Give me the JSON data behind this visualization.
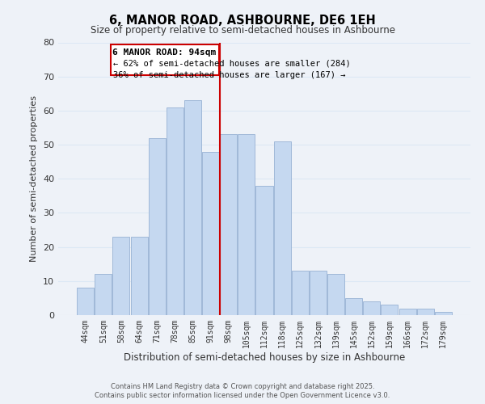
{
  "title": "6, MANOR ROAD, ASHBOURNE, DE6 1EH",
  "subtitle": "Size of property relative to semi-detached houses in Ashbourne",
  "xlabel": "Distribution of semi-detached houses by size in Ashbourne",
  "ylabel": "Number of semi-detached properties",
  "categories": [
    "44sqm",
    "51sqm",
    "58sqm",
    "64sqm",
    "71sqm",
    "78sqm",
    "85sqm",
    "91sqm",
    "98sqm",
    "105sqm",
    "112sqm",
    "118sqm",
    "125sqm",
    "132sqm",
    "139sqm",
    "145sqm",
    "152sqm",
    "159sqm",
    "166sqm",
    "172sqm",
    "179sqm"
  ],
  "values": [
    8,
    12,
    23,
    23,
    52,
    61,
    63,
    48,
    53,
    53,
    38,
    51,
    13,
    13,
    12,
    5,
    4,
    3,
    2,
    2,
    1
  ],
  "bar_color": "#c5d8f0",
  "bar_edge_color": "#a0b8d8",
  "highlight_label": "6 MANOR ROAD: 94sqm",
  "annotation_line1": "← 62% of semi-detached houses are smaller (284)",
  "annotation_line2": "36% of semi-detached houses are larger (167) →",
  "annotation_box_color": "#ffffff",
  "annotation_box_edge": "#cc0000",
  "vline_color": "#cc0000",
  "ylim": [
    0,
    80
  ],
  "yticks": [
    0,
    10,
    20,
    30,
    40,
    50,
    60,
    70,
    80
  ],
  "grid_color": "#dce8f5",
  "background_color": "#eef2f8",
  "footer1": "Contains HM Land Registry data © Crown copyright and database right 2025.",
  "footer2": "Contains public sector information licensed under the Open Government Licence v3.0."
}
